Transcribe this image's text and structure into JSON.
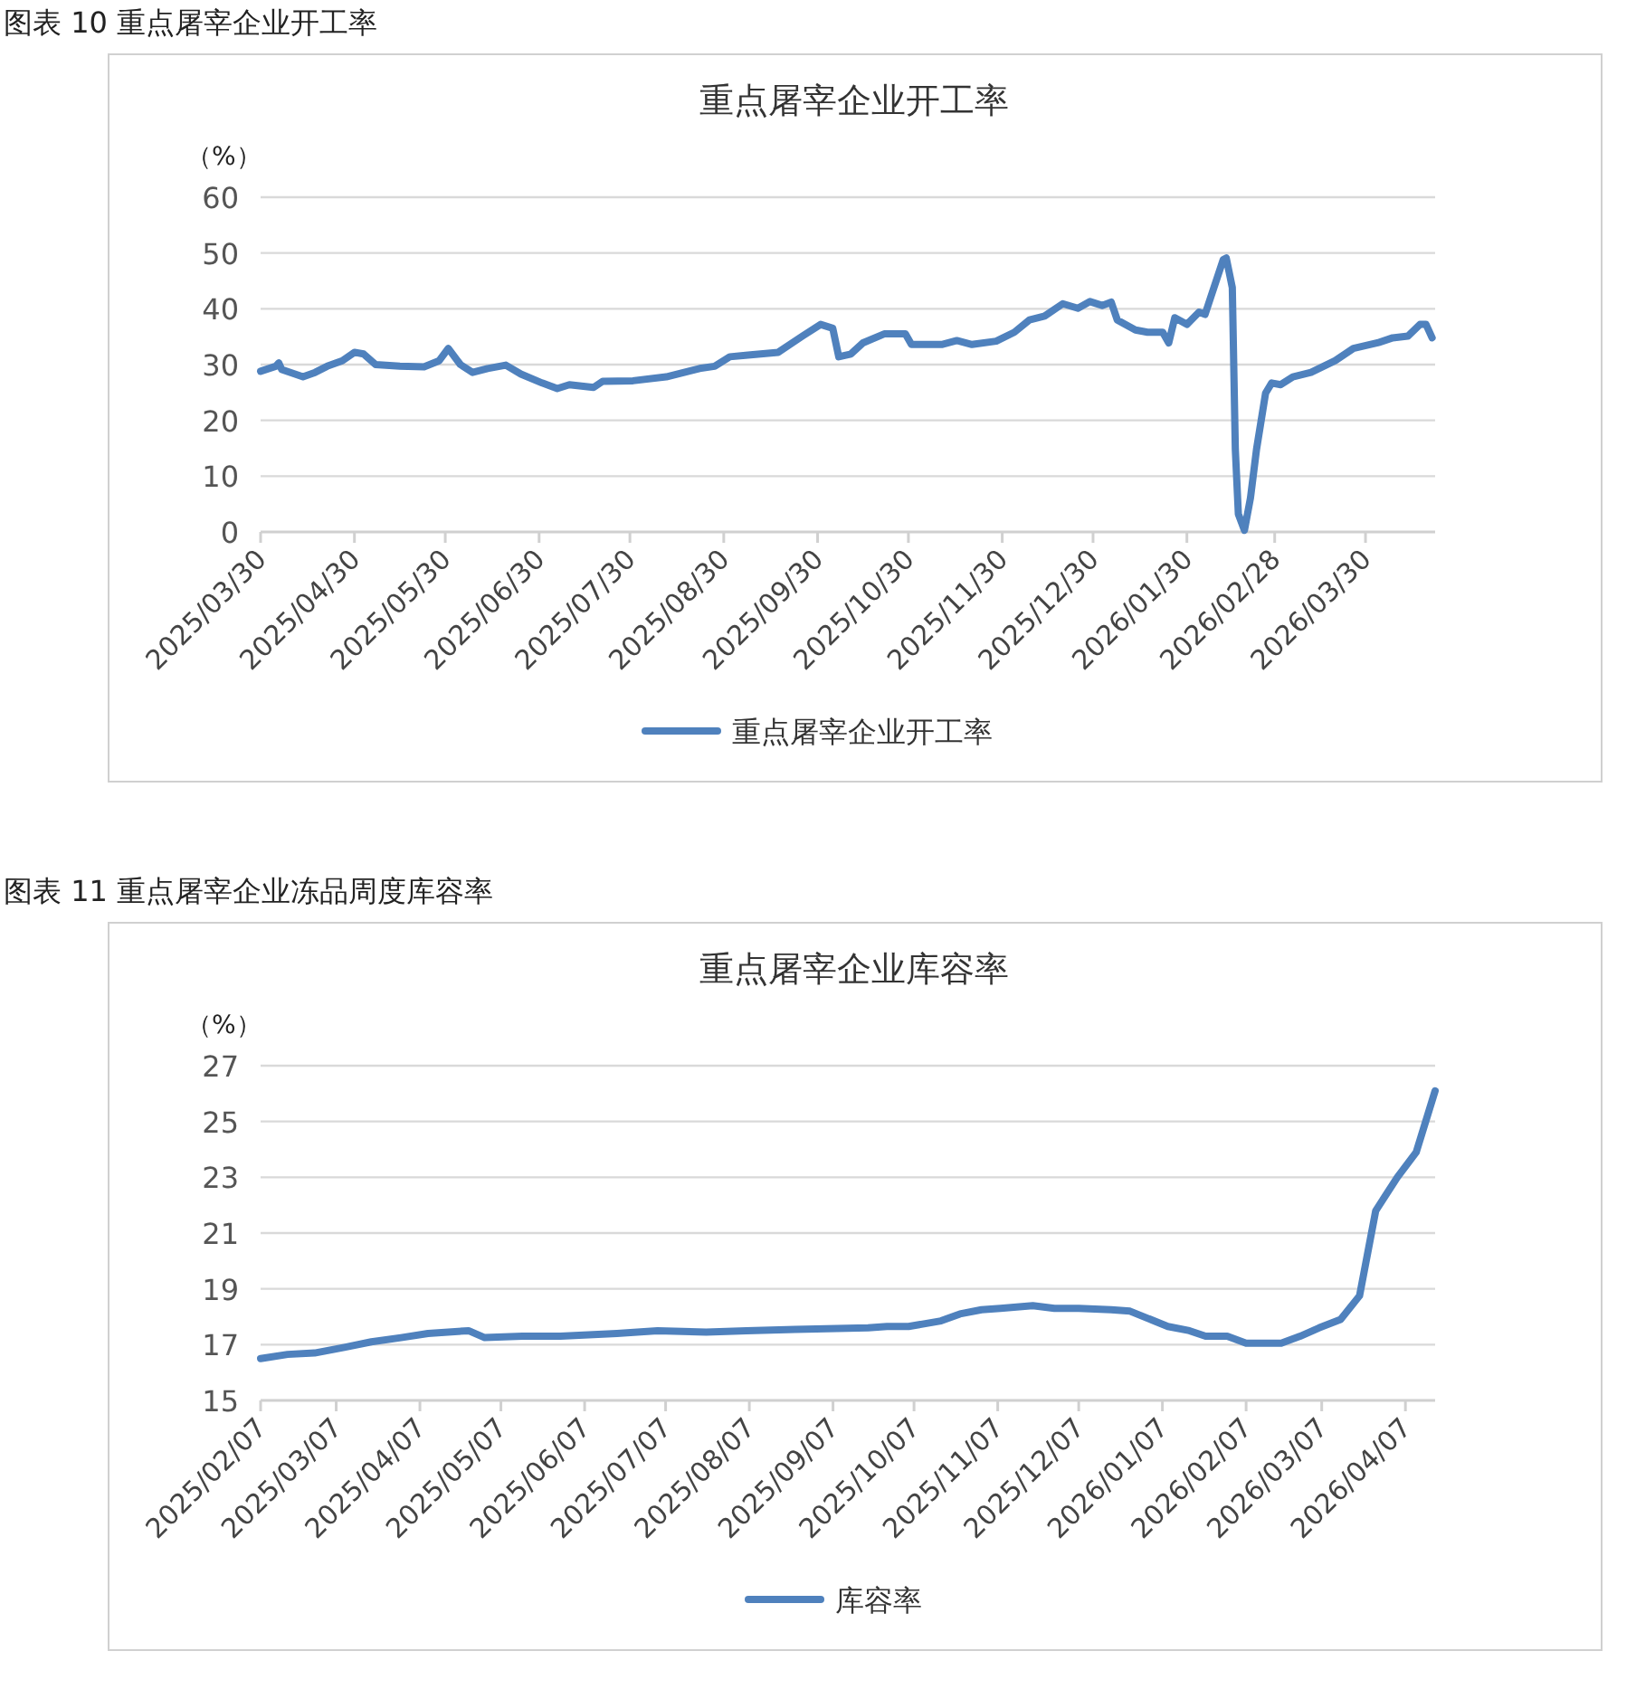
{
  "chart_data": [
    {
      "type": "line",
      "title": "图表 10  重点屠宰企业开工率",
      "subtitle": "重点屠宰企业开工率",
      "ylabel": "（%）",
      "x": [
        "2025-03-30",
        "2025-04-04",
        "2025-04-05",
        "2025-04-06",
        "2025-04-13",
        "2025-04-17",
        "2025-04-21",
        "2025-04-26",
        "2025-04-30",
        "2025-05-03",
        "2025-05-07",
        "2025-05-15",
        "2025-05-23",
        "2025-05-28",
        "2025-05-31",
        "2025-06-04",
        "2025-06-08",
        "2025-06-13",
        "2025-06-19",
        "2025-06-24",
        "2025-07-01",
        "2025-07-06",
        "2025-07-10",
        "2025-07-18",
        "2025-07-21",
        "2025-07-31",
        "2025-08-11",
        "2025-08-22",
        "2025-08-27",
        "2025-09-01",
        "2025-09-07",
        "2025-09-17",
        "2025-09-25",
        "2025-10-01",
        "2025-10-05",
        "2025-10-07",
        "2025-10-11",
        "2025-10-15",
        "2025-10-22",
        "2025-10-29",
        "2025-10-31",
        "2025-11-10",
        "2025-11-15",
        "2025-11-20",
        "2025-11-28",
        "2025-12-04",
        "2025-12-09",
        "2025-12-14",
        "2025-12-20",
        "2025-12-25",
        "2025-12-29",
        "2026-01-02",
        "2026-01-05",
        "2026-01-07",
        "2026-01-13",
        "2026-01-17",
        "2026-01-22",
        "2026-01-24",
        "2026-01-26",
        "2026-01-30",
        "2026-02-03",
        "2026-02-05",
        "2026-02-07",
        "2026-02-11",
        "2026-02-12",
        "2026-02-14",
        "2026-02-15",
        "2026-02-16",
        "2026-02-18",
        "2026-02-20",
        "2026-02-22",
        "2026-02-25",
        "2026-02-27",
        "2026-03-02",
        "2026-03-06",
        "2026-03-12",
        "2026-03-20",
        "2026-03-26",
        "2026-04-03",
        "2026-04-08",
        "2026-04-13",
        "2026-04-17",
        "2026-04-19",
        "2026-04-21"
      ],
      "series": [
        {
          "name": "重点屠宰企业开工率",
          "color": "#4f81bd",
          "values": [
            28.8,
            29.7,
            30.3,
            29.1,
            27.8,
            28.6,
            29.7,
            30.7,
            32.2,
            31.9,
            30.0,
            29.7,
            29.6,
            30.7,
            32.9,
            30.0,
            28.6,
            29.3,
            29.9,
            28.3,
            26.7,
            25.7,
            26.4,
            25.9,
            27.0,
            27.1,
            27.8,
            29.3,
            29.7,
            31.4,
            31.7,
            32.2,
            35.1,
            37.2,
            36.5,
            31.4,
            31.9,
            33.9,
            35.5,
            35.5,
            33.6,
            33.6,
            34.3,
            33.6,
            34.2,
            35.8,
            38.0,
            38.7,
            40.9,
            40.1,
            41.3,
            40.6,
            41.2,
            38.0,
            36.2,
            35.8,
            35.8,
            33.9,
            38.4,
            37.2,
            39.4,
            39.0,
            42.3,
            48.8,
            49.1,
            43.8,
            14.8,
            3.2,
            0.3,
            6.1,
            14.8,
            24.9,
            26.7,
            26.4,
            27.8,
            28.6,
            30.7,
            32.9,
            33.9,
            34.8,
            35.1,
            37.2,
            37.2,
            34.8
          ]
        }
      ],
      "xlim": [
        "2025-03-30",
        "2026-04-22"
      ],
      "ylim": [
        0,
        60
      ],
      "yticks": [
        0,
        10,
        20,
        30,
        40,
        50,
        60
      ],
      "xticks": [
        {
          "value": "2025-03-30",
          "label": "2025/03/30"
        },
        {
          "value": "2025-04-30",
          "label": "2025/04/30"
        },
        {
          "value": "2025-05-30",
          "label": "2025/05/30"
        },
        {
          "value": "2025-06-30",
          "label": "2025/06/30"
        },
        {
          "value": "2025-07-30",
          "label": "2025/07/30"
        },
        {
          "value": "2025-08-30",
          "label": "2025/08/30"
        },
        {
          "value": "2025-09-30",
          "label": "2025/09/30"
        },
        {
          "value": "2025-10-30",
          "label": "2025/10/30"
        },
        {
          "value": "2025-11-30",
          "label": "2025/11/30"
        },
        {
          "value": "2025-12-30",
          "label": "2025/12/30"
        },
        {
          "value": "2026-01-30",
          "label": "2026/01/30"
        },
        {
          "value": "2026-02-28",
          "label": "2026/02/28"
        },
        {
          "value": "2026-03-30",
          "label": "2026/03/30"
        }
      ],
      "grid": "y",
      "legend": "bottom"
    },
    {
      "type": "line",
      "title": "图表 11  重点屠宰企业冻品周度库容率",
      "subtitle": "重点屠宰企业库容率",
      "ylabel": "（%）",
      "x": [
        "2025-02-07",
        "2025-02-17",
        "2025-02-27",
        "2025-03-10",
        "2025-03-20",
        "2025-03-31",
        "2025-04-10",
        "2025-04-25",
        "2025-05-01",
        "2025-05-15",
        "2025-05-29",
        "2025-06-19",
        "2025-07-04",
        "2025-07-22",
        "2025-08-06",
        "2025-08-24",
        "2025-09-20",
        "2025-09-27",
        "2025-10-05",
        "2025-10-17",
        "2025-10-24",
        "2025-11-01",
        "2025-11-08",
        "2025-11-20",
        "2025-11-28",
        "2025-12-07",
        "2025-12-19",
        "2025-12-26",
        "2026-01-09",
        "2026-01-17",
        "2026-01-23",
        "2026-01-31",
        "2026-02-07",
        "2026-02-13",
        "2026-02-20",
        "2026-02-27",
        "2026-03-06",
        "2026-03-14",
        "2026-03-21",
        "2026-03-27",
        "2026-04-04",
        "2026-04-11",
        "2026-04-18"
      ],
      "series": [
        {
          "name": "库容率",
          "color": "#4f81bd",
          "values": [
            16.5,
            16.65,
            16.7,
            16.9,
            17.1,
            17.25,
            17.4,
            17.5,
            17.25,
            17.3,
            17.3,
            17.4,
            17.5,
            17.45,
            17.5,
            17.55,
            17.6,
            17.65,
            17.65,
            17.85,
            18.1,
            18.25,
            18.3,
            18.4,
            18.3,
            18.3,
            18.25,
            18.2,
            17.65,
            17.5,
            17.3,
            17.3,
            17.05,
            17.05,
            17.05,
            17.3,
            17.6,
            17.9,
            18.75,
            21.8,
            23.0,
            23.9,
            26.1
          ]
        }
      ],
      "xlim": [
        "2025-02-07",
        "2026-04-18"
      ],
      "ylim": [
        15,
        27
      ],
      "yticks": [
        15,
        17,
        19,
        21,
        23,
        25,
        27
      ],
      "xticks": [
        {
          "value": "2025-02-07",
          "label": "2025/02/07"
        },
        {
          "value": "2025-03-07",
          "label": "2025/03/07"
        },
        {
          "value": "2025-04-07",
          "label": "2025/04/07"
        },
        {
          "value": "2025-05-07",
          "label": "2025/05/07"
        },
        {
          "value": "2025-06-07",
          "label": "2025/06/07"
        },
        {
          "value": "2025-07-07",
          "label": "2025/07/07"
        },
        {
          "value": "2025-08-07",
          "label": "2025/08/07"
        },
        {
          "value": "2025-09-07",
          "label": "2025/09/07"
        },
        {
          "value": "2025-10-07",
          "label": "2025/10/07"
        },
        {
          "value": "2025-11-07",
          "label": "2025/11/07"
        },
        {
          "value": "2025-12-07",
          "label": "2025/12/07"
        },
        {
          "value": "2026-01-07",
          "label": "2026/01/07"
        },
        {
          "value": "2026-02-07",
          "label": "2026/02/07"
        },
        {
          "value": "2026-03-07",
          "label": "2026/03/07"
        },
        {
          "value": "2026-04-07",
          "label": "2026/04/07"
        }
      ],
      "grid": "y",
      "legend": "bottom"
    }
  ]
}
